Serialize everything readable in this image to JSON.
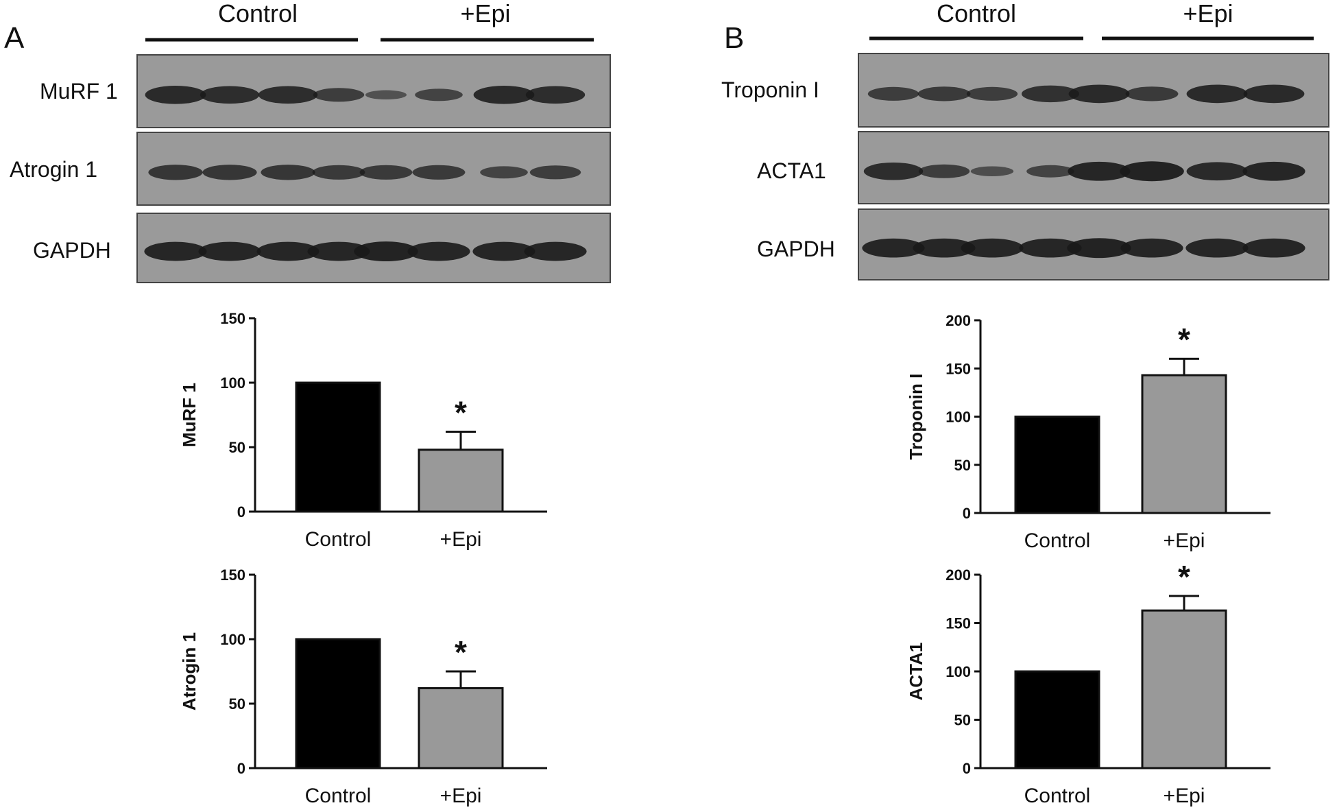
{
  "panels": [
    {
      "letter": "A",
      "groups": [
        "Control",
        "+Epi"
      ],
      "blots": [
        {
          "label": "MuRF 1",
          "lanes": [
            0.85,
            0.8,
            0.8,
            0.55,
            0.25,
            0.45,
            0.85,
            0.8
          ]
        },
        {
          "label": "Atrogin 1",
          "lanes": [
            0.65,
            0.65,
            0.65,
            0.6,
            0.6,
            0.6,
            0.45,
            0.55
          ]
        },
        {
          "label": "GAPDH",
          "lanes": [
            0.9,
            0.9,
            0.9,
            0.9,
            0.95,
            0.9,
            0.9,
            0.9
          ]
        }
      ]
    },
    {
      "letter": "B",
      "groups": [
        "Control",
        "+Epi"
      ],
      "blots": [
        {
          "label": "Troponin I",
          "lanes": [
            0.55,
            0.6,
            0.55,
            0.75,
            0.85,
            0.6,
            0.85,
            0.85
          ]
        },
        {
          "label": "ACTA1",
          "lanes": [
            0.8,
            0.55,
            0.3,
            0.45,
            0.9,
            0.95,
            0.85,
            0.9
          ]
        },
        {
          "label": "GAPDH",
          "lanes": [
            0.9,
            0.9,
            0.9,
            0.9,
            0.95,
            0.9,
            0.9,
            0.9
          ]
        }
      ]
    }
  ],
  "colors": {
    "control_bar": "#000000",
    "epi_bar": "#999999",
    "band": "#1a1a1a",
    "blot_bg": "#9a9a9a"
  },
  "chart_data": [
    {
      "type": "bar",
      "categories": [
        "Control",
        "+Epi"
      ],
      "values": [
        100,
        48
      ],
      "errors": [
        0,
        14
      ],
      "significance": [
        "",
        "*"
      ],
      "ylabel": "MuRF 1",
      "ylim": [
        0,
        150
      ],
      "yticks": [
        0,
        50,
        100,
        150
      ]
    },
    {
      "type": "bar",
      "categories": [
        "Control",
        "+Epi"
      ],
      "values": [
        100,
        62
      ],
      "errors": [
        0,
        13
      ],
      "significance": [
        "",
        "*"
      ],
      "ylabel": "Atrogin 1",
      "ylim": [
        0,
        150
      ],
      "yticks": [
        0,
        50,
        100,
        150
      ]
    },
    {
      "type": "bar",
      "categories": [
        "Control",
        "+Epi"
      ],
      "values": [
        100,
        143
      ],
      "errors": [
        0,
        17
      ],
      "significance": [
        "",
        "*"
      ],
      "ylabel": "Troponin I",
      "ylim": [
        0,
        200
      ],
      "yticks": [
        0,
        50,
        100,
        150,
        200
      ]
    },
    {
      "type": "bar",
      "categories": [
        "Control",
        "+Epi"
      ],
      "values": [
        100,
        163
      ],
      "errors": [
        0,
        15
      ],
      "significance": [
        "",
        "*"
      ],
      "ylabel": "ACTA1",
      "ylim": [
        0,
        200
      ],
      "yticks": [
        0,
        50,
        100,
        150,
        200
      ]
    }
  ]
}
